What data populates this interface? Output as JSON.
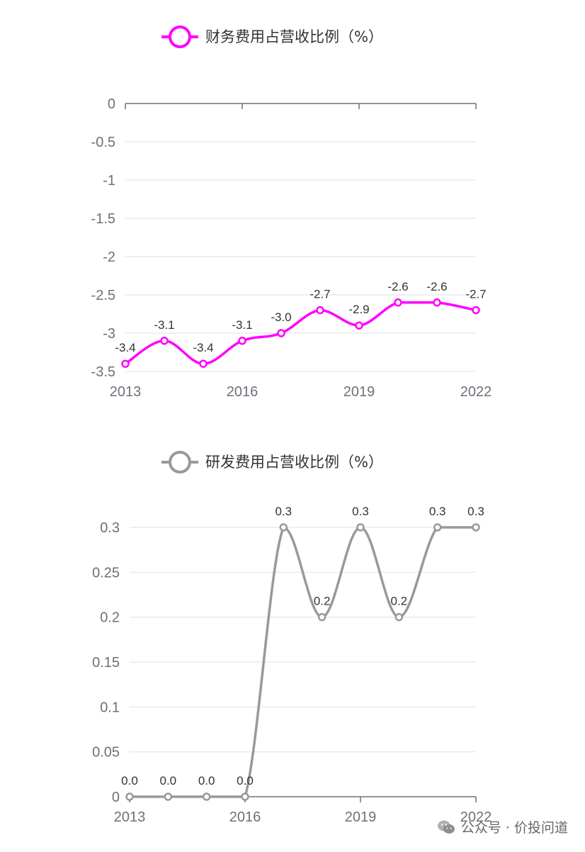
{
  "chart_data": [
    {
      "type": "line",
      "smooth": true,
      "legend": "财务费用占营收比例（%）",
      "legend_position": "top-center",
      "color": "#ff00ff",
      "x": [
        "2013",
        "2014",
        "2015",
        "2016",
        "2017",
        "2018",
        "2019",
        "2020",
        "2021",
        "2022"
      ],
      "x_tick_labels": [
        "2013",
        "2016",
        "2019",
        "2022"
      ],
      "y_ticks": [
        0,
        -0.5,
        -1,
        -1.5,
        -2,
        -2.5,
        -3,
        -3.5
      ],
      "y_tick_labels": [
        "0",
        "-0.5",
        "-1",
        "-1.5",
        "-2",
        "-2.5",
        "-3",
        "-3.5"
      ],
      "ylim": [
        -3.5,
        0
      ],
      "x_axis_position": "top",
      "values": [
        -3.4,
        -3.1,
        -3.4,
        -3.1,
        -3.0,
        -2.7,
        -2.9,
        -2.6,
        -2.6,
        -2.7
      ],
      "value_labels": [
        "-3.4",
        "-3.1",
        "-3.4",
        "-3.1",
        "-3.0",
        "-2.7",
        "-2.9",
        "-2.6",
        "-2.6",
        "-2.7"
      ],
      "grid": true
    },
    {
      "type": "line",
      "smooth": true,
      "legend": "研发费用占营收比例（%）",
      "legend_position": "top-center",
      "color": "#999999",
      "x": [
        "2013",
        "2014",
        "2015",
        "2016",
        "2017",
        "2018",
        "2019",
        "2020",
        "2021",
        "2022"
      ],
      "x_tick_labels": [
        "2013",
        "2016",
        "2019",
        "2022"
      ],
      "y_ticks": [
        0,
        0.05,
        0.1,
        0.15,
        0.2,
        0.25,
        0.3
      ],
      "y_tick_labels": [
        "0",
        "0.05",
        "0.1",
        "0.15",
        "0.2",
        "0.25",
        "0.3"
      ],
      "ylim": [
        0,
        0.3
      ],
      "x_axis_position": "bottom",
      "values": [
        0.0,
        0.0,
        0.0,
        0.0,
        0.3,
        0.2,
        0.3,
        0.2,
        0.3,
        0.3
      ],
      "value_labels": [
        "0.0",
        "0.0",
        "0.0",
        "0.0",
        "0.3",
        "0.2",
        "0.3",
        "0.2",
        "0.3",
        "0.3"
      ],
      "grid": true
    }
  ],
  "watermark": {
    "icon": "wechat-icon",
    "text": "公众号 · 价投问道"
  }
}
